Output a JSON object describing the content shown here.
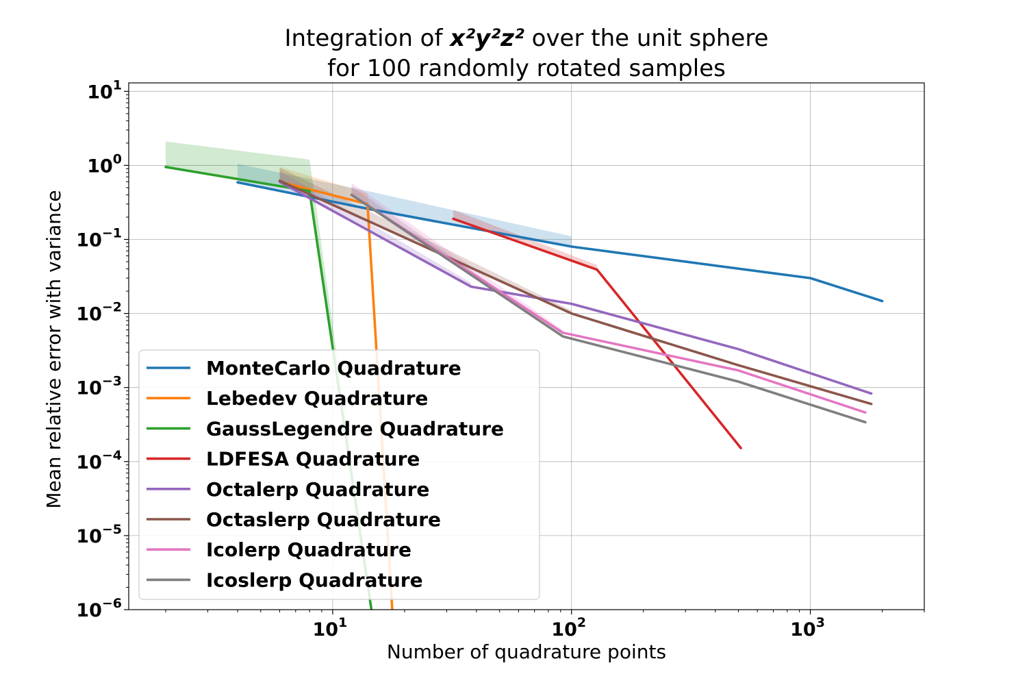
{
  "chart_data": {
    "type": "line",
    "title": {
      "prefix": "Integration of ",
      "formula": "x²y²z²",
      "suffix": " over the unit sphere",
      "line2": "for 100 randomly rotated samples"
    },
    "xlabel": "Number of quadrature points",
    "ylabel": "Mean relative error with variance",
    "xscale": "log",
    "yscale": "log",
    "xlim": [
      1.4,
      3000
    ],
    "ylim": [
      1e-06,
      13
    ],
    "x_ticks": [
      {
        "base": "10",
        "exp": "1",
        "value": 10
      },
      {
        "base": "10",
        "exp": "2",
        "value": 100
      },
      {
        "base": "10",
        "exp": "3",
        "value": 1000
      }
    ],
    "y_ticks": [
      {
        "base": "10",
        "exp": "1",
        "value": 10
      },
      {
        "base": "10",
        "exp": "0",
        "value": 1
      },
      {
        "base": "10",
        "exp": "−1",
        "value": 0.1
      },
      {
        "base": "10",
        "exp": "−2",
        "value": 0.01
      },
      {
        "base": "10",
        "exp": "−3",
        "value": 0.001
      },
      {
        "base": "10",
        "exp": "−4",
        "value": 0.0001
      },
      {
        "base": "10",
        "exp": "−5",
        "value": 1e-05
      },
      {
        "base": "10",
        "exp": "−6",
        "value": 1e-06
      }
    ],
    "grid": true,
    "legend_position": "lower-left",
    "series": [
      {
        "name": "MonteCarlo Quadrature",
        "color": "#1f77b4",
        "x": [
          4,
          14,
          100,
          1000,
          2000
        ],
        "y": [
          0.59,
          0.26,
          0.08,
          0.03,
          0.0147
        ],
        "upper": [
          1.05,
          0.45,
          0.11,
          0.032,
          0.015
        ],
        "band_n": 3
      },
      {
        "name": "Lebedev Quadrature",
        "color": "#ff7f0e",
        "x": [
          6,
          14,
          18
        ],
        "y": [
          0.6,
          0.3,
          5e-07
        ],
        "upper": [
          0.95,
          0.42,
          6e-07
        ],
        "band_n": 3
      },
      {
        "name": "GaussLegendre Quadrature",
        "color": "#2ca02c",
        "x": [
          2,
          8,
          15
        ],
        "y": [
          0.95,
          0.45,
          5e-07
        ],
        "upper": [
          2.1,
          1.2,
          6e-07
        ],
        "band_n": 3
      },
      {
        "name": "LDFESA Quadrature",
        "color": "#d62728",
        "x": [
          32,
          128,
          512
        ],
        "y": [
          0.19,
          0.039,
          0.000152
        ],
        "upper": [
          0.25,
          0.045,
          0.00016
        ],
        "band_n": 2
      },
      {
        "name": "Octalerp Quadrature",
        "color": "#9467bd",
        "x": [
          6,
          38,
          100,
          500,
          1800
        ],
        "y": [
          0.6,
          0.023,
          0.0135,
          0.0033,
          0.00083
        ],
        "upper": [
          0.85,
          0.026,
          0.014,
          0.0034,
          0.00085
        ],
        "band_n": 2
      },
      {
        "name": "Octaslerp Quadrature",
        "color": "#8c564b",
        "x": [
          6,
          100,
          500,
          1800
        ],
        "y": [
          0.62,
          0.01,
          0.002,
          0.0006
        ],
        "upper": [
          0.93,
          0.011,
          0.0021,
          0.00062
        ],
        "band_n": 2
      },
      {
        "name": "Icolerp Quadrature",
        "color": "#e377c2",
        "x": [
          12,
          92,
          500,
          1700
        ],
        "y": [
          0.4,
          0.0055,
          0.0017,
          0.00046
        ],
        "upper": [
          0.58,
          0.006,
          0.0018,
          0.00047
        ],
        "band_n": 2
      },
      {
        "name": "Icoslerp Quadrature",
        "color": "#7f7f7f",
        "x": [
          12,
          92,
          500,
          1700
        ],
        "y": [
          0.4,
          0.0049,
          0.0012,
          0.00034
        ],
        "upper": [
          0.52,
          0.0052,
          0.0012,
          0.00035
        ],
        "band_n": 2
      }
    ]
  }
}
